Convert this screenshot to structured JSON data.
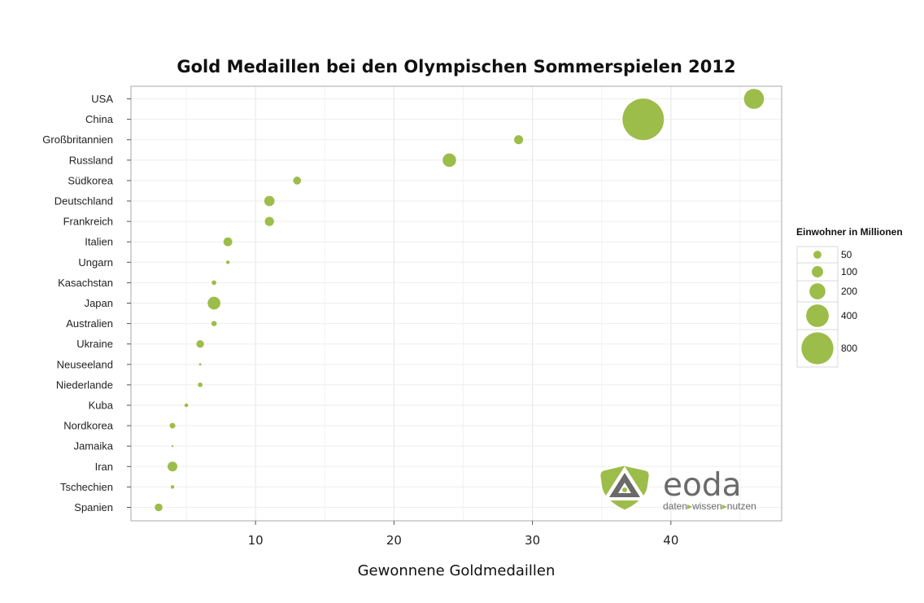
{
  "chart_data": {
    "type": "scatter",
    "title": "Gold Medaillen bei den Olympischen Sommerspielen 2012",
    "xlabel": "Gewonnene Goldmedaillen",
    "ylabel": "",
    "xlim": [
      1,
      48
    ],
    "xticks": [
      10,
      20,
      30,
      40
    ],
    "grid": true,
    "point_color": "#9dbd4a",
    "size_legend": {
      "title": "Einwohner in Millionen",
      "placement": "right",
      "entries": [
        50,
        100,
        200,
        400,
        800
      ]
    },
    "points": [
      {
        "country": "USA",
        "gold": 46,
        "population": 312
      },
      {
        "country": "China",
        "gold": 38,
        "population": 1340
      },
      {
        "country": "Großbritannien",
        "gold": 29,
        "population": 63
      },
      {
        "country": "Russland",
        "gold": 24,
        "population": 142
      },
      {
        "country": "Südkorea",
        "gold": 13,
        "population": 49
      },
      {
        "country": "Deutschland",
        "gold": 11,
        "population": 82
      },
      {
        "country": "Frankreich",
        "gold": 11,
        "population": 65
      },
      {
        "country": "Italien",
        "gold": 8,
        "population": 61
      },
      {
        "country": "Ungarn",
        "gold": 8,
        "population": 10
      },
      {
        "country": "Kasachstan",
        "gold": 7,
        "population": 17
      },
      {
        "country": "Japan",
        "gold": 7,
        "population": 127
      },
      {
        "country": "Australien",
        "gold": 7,
        "population": 22
      },
      {
        "country": "Ukraine",
        "gold": 6,
        "population": 45
      },
      {
        "country": "Neuseeland",
        "gold": 6,
        "population": 4.4
      },
      {
        "country": "Niederlande",
        "gold": 6,
        "population": 17
      },
      {
        "country": "Kuba",
        "gold": 5,
        "population": 11
      },
      {
        "country": "Nordkorea",
        "gold": 4,
        "population": 25
      },
      {
        "country": "Jamaika",
        "gold": 4,
        "population": 2.7
      },
      {
        "country": "Iran",
        "gold": 4,
        "population": 75
      },
      {
        "country": "Tschechien",
        "gold": 4,
        "population": 10.5
      },
      {
        "country": "Spanien",
        "gold": 3,
        "population": 47
      }
    ]
  },
  "logo": {
    "name": "eoda",
    "tagline": [
      {
        "word": "daten",
        "arrow": "▸"
      },
      {
        "word": "wissen",
        "arrow": "▸"
      },
      {
        "word": "nutzen",
        "arrow": ""
      }
    ],
    "colors": {
      "gray": "#6a6a6a",
      "green": "#9dbd4a",
      "white": "#ffffff"
    }
  }
}
